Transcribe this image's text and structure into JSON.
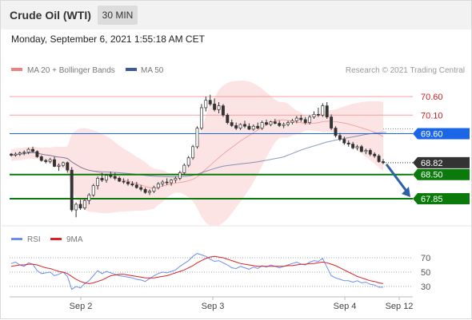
{
  "header": {
    "title": "Crude Oil (WTI)",
    "timeframe": "30 MIN"
  },
  "datetime": "Monday, September 6, 2021 1:55:18 AM CET",
  "legend": {
    "bollinger": "MA 20 + Bollinger Bands",
    "ma50": "MA 50",
    "research": "Research © 2021 Trading Central",
    "rsi": "RSI",
    "rsi_ma": "9MA"
  },
  "colors": {
    "bollinger": "#f08080",
    "band_fill": "#fde4e4",
    "ma50": "#3b5a9a",
    "rsi": "#6b8ff0",
    "rsi_ma": "#dd2222",
    "resistance": "#f4a0a0",
    "pivot": "#1a66e6",
    "support": "#0a7a0a",
    "current": "#333333",
    "arrow": "#2f5fa8"
  },
  "levels": [
    {
      "value": 70.6,
      "label": "70.60",
      "kind": "resistance"
    },
    {
      "value": 70.1,
      "label": "70.10",
      "kind": "resistance"
    },
    {
      "value": 69.6,
      "label": "69.60",
      "kind": "pivot"
    },
    {
      "value": 68.82,
      "label": "68.82",
      "kind": "current"
    },
    {
      "value": 68.5,
      "label": "68.50",
      "kind": "support"
    },
    {
      "value": 67.85,
      "label": "67.85",
      "kind": "support"
    }
  ],
  "x_labels": [
    "Sep 2",
    "Sep 3",
    "Sep 4",
    "Sep 12"
  ],
  "rsi_ticks": [
    "70",
    "50",
    "30"
  ],
  "chart_data": {
    "type": "candlestick",
    "y_range": [
      67.2,
      71.0
    ],
    "forecast": {
      "from": 68.82,
      "to": 67.85
    },
    "candles": [
      [
        69.05,
        69.08,
        68.98,
        69.02
      ],
      [
        69.02,
        69.1,
        68.98,
        69.05
      ],
      [
        69.05,
        69.12,
        69.0,
        69.08
      ],
      [
        69.08,
        69.15,
        69.02,
        69.1
      ],
      [
        69.1,
        69.22,
        69.05,
        69.18
      ],
      [
        69.18,
        69.25,
        69.1,
        69.12
      ],
      [
        69.12,
        69.15,
        68.95,
        68.98
      ],
      [
        68.98,
        69.02,
        68.85,
        68.88
      ],
      [
        68.88,
        68.92,
        68.8,
        68.85
      ],
      [
        68.85,
        68.95,
        68.8,
        68.9
      ],
      [
        68.9,
        68.98,
        68.7,
        68.72
      ],
      [
        68.72,
        68.8,
        68.6,
        68.75
      ],
      [
        68.75,
        68.85,
        68.7,
        68.82
      ],
      [
        68.82,
        68.85,
        68.55,
        68.62
      ],
      [
        68.62,
        68.7,
        67.5,
        67.55
      ],
      [
        67.55,
        67.75,
        67.35,
        67.7
      ],
      [
        67.7,
        67.82,
        67.55,
        67.6
      ],
      [
        67.6,
        67.85,
        67.55,
        67.8
      ],
      [
        67.8,
        68.0,
        67.7,
        67.95
      ],
      [
        67.95,
        68.25,
        67.9,
        68.2
      ],
      [
        68.2,
        68.45,
        68.1,
        68.4
      ],
      [
        68.4,
        68.55,
        68.3,
        68.35
      ],
      [
        68.35,
        68.52,
        68.28,
        68.48
      ],
      [
        68.48,
        68.58,
        68.4,
        68.45
      ],
      [
        68.45,
        68.55,
        68.35,
        68.4
      ],
      [
        68.4,
        68.45,
        68.3,
        68.32
      ],
      [
        68.32,
        68.4,
        68.25,
        68.3
      ],
      [
        68.3,
        68.38,
        68.2,
        68.25
      ],
      [
        68.25,
        68.32,
        68.18,
        68.22
      ],
      [
        68.22,
        68.3,
        68.12,
        68.15
      ],
      [
        68.15,
        68.22,
        68.05,
        68.1
      ],
      [
        68.1,
        68.15,
        67.98,
        68.02
      ],
      [
        68.02,
        68.1,
        67.95,
        68.05
      ],
      [
        68.05,
        68.2,
        68.0,
        68.15
      ],
      [
        68.15,
        68.3,
        68.1,
        68.25
      ],
      [
        68.25,
        68.35,
        68.18,
        68.3
      ],
      [
        68.3,
        68.4,
        68.22,
        68.28
      ],
      [
        68.28,
        68.38,
        68.2,
        68.35
      ],
      [
        68.35,
        68.45,
        68.28,
        68.4
      ],
      [
        68.4,
        68.6,
        68.35,
        68.55
      ],
      [
        68.55,
        68.8,
        68.5,
        68.75
      ],
      [
        68.75,
        69.0,
        68.7,
        68.95
      ],
      [
        68.95,
        69.3,
        68.9,
        69.25
      ],
      [
        69.25,
        69.8,
        69.2,
        69.75
      ],
      [
        69.75,
        70.4,
        69.7,
        70.3
      ],
      [
        70.3,
        70.6,
        70.2,
        70.5
      ],
      [
        70.5,
        70.65,
        70.35,
        70.4
      ],
      [
        70.4,
        70.55,
        70.2,
        70.25
      ],
      [
        70.25,
        70.45,
        70.15,
        70.35
      ],
      [
        70.35,
        70.4,
        70.05,
        70.1
      ],
      [
        70.1,
        70.15,
        69.85,
        69.9
      ],
      [
        69.9,
        69.98,
        69.78,
        69.82
      ],
      [
        69.82,
        69.9,
        69.7,
        69.75
      ],
      [
        69.75,
        69.88,
        69.7,
        69.85
      ],
      [
        69.85,
        69.95,
        69.75,
        69.8
      ],
      [
        69.8,
        69.88,
        69.7,
        69.72
      ],
      [
        69.72,
        69.85,
        69.68,
        69.8
      ],
      [
        69.8,
        69.9,
        69.72,
        69.75
      ],
      [
        69.75,
        69.95,
        69.7,
        69.9
      ],
      [
        69.9,
        69.98,
        69.82,
        69.85
      ],
      [
        69.85,
        69.95,
        69.8,
        69.92
      ],
      [
        69.92,
        70.0,
        69.85,
        69.88
      ],
      [
        69.88,
        69.95,
        69.78,
        69.82
      ],
      [
        69.82,
        69.9,
        69.75,
        69.85
      ],
      [
        69.85,
        69.95,
        69.8,
        69.9
      ],
      [
        69.9,
        70.0,
        69.85,
        69.95
      ],
      [
        69.95,
        70.08,
        69.88,
        70.02
      ],
      [
        70.02,
        70.1,
        69.92,
        69.98
      ],
      [
        69.98,
        70.05,
        69.85,
        69.9
      ],
      [
        69.9,
        70.1,
        69.85,
        70.05
      ],
      [
        70.05,
        70.2,
        70.0,
        70.12
      ],
      [
        70.12,
        70.3,
        70.05,
        70.1
      ],
      [
        70.1,
        70.42,
        70.05,
        70.35
      ],
      [
        70.35,
        70.45,
        70.0,
        70.05
      ],
      [
        70.05,
        70.12,
        69.7,
        69.75
      ],
      [
        69.75,
        69.8,
        69.5,
        69.55
      ],
      [
        69.55,
        69.62,
        69.4,
        69.45
      ],
      [
        69.45,
        69.52,
        69.3,
        69.35
      ],
      [
        69.35,
        69.42,
        69.25,
        69.32
      ],
      [
        69.32,
        69.38,
        69.18,
        69.22
      ],
      [
        69.22,
        69.3,
        69.15,
        69.25
      ],
      [
        69.25,
        69.3,
        69.1,
        69.12
      ],
      [
        69.12,
        69.2,
        69.05,
        69.15
      ],
      [
        69.15,
        69.2,
        69.0,
        69.05
      ],
      [
        69.05,
        69.1,
        68.95,
        69.0
      ],
      [
        69.0,
        69.05,
        68.82,
        68.85
      ],
      [
        68.85,
        68.92,
        68.78,
        68.82
      ]
    ]
  },
  "rsi_data": {
    "rsi": [
      62,
      64,
      60,
      58,
      63,
      61,
      52,
      48,
      49,
      50,
      45,
      47,
      50,
      44,
      26,
      30,
      28,
      34,
      38,
      45,
      52,
      48,
      51,
      49,
      47,
      45,
      44,
      43,
      42,
      40,
      39,
      37,
      41,
      45,
      48,
      50,
      49,
      51,
      53,
      58,
      62,
      66,
      72,
      76,
      74,
      72,
      68,
      65,
      66,
      63,
      60,
      56,
      55,
      58,
      56,
      54,
      57,
      55,
      59,
      57,
      60,
      58,
      56,
      58,
      60,
      62,
      64,
      61,
      60,
      64,
      66,
      65,
      69,
      57,
      45,
      42,
      40,
      38,
      38,
      36,
      38,
      35,
      36,
      33,
      32,
      29,
      29
    ],
    "ma": [
      58,
      59,
      60,
      60,
      61,
      61,
      60,
      58,
      56,
      55,
      53,
      51,
      50,
      48,
      44,
      40,
      37,
      35,
      34,
      35,
      37,
      39,
      42,
      45,
      46,
      47,
      47,
      46,
      45,
      44,
      43,
      42,
      42,
      42,
      43,
      44,
      45,
      47,
      49,
      51,
      53,
      56,
      59,
      63,
      66,
      69,
      71,
      72,
      71,
      70,
      68,
      66,
      64,
      62,
      61,
      60,
      59,
      58,
      58,
      58,
      58,
      58,
      58,
      58,
      59,
      59,
      60,
      61,
      61,
      62,
      62,
      63,
      64,
      63,
      61,
      59,
      56,
      53,
      50,
      47,
      44,
      42,
      40,
      38,
      37,
      35,
      34
    ]
  }
}
